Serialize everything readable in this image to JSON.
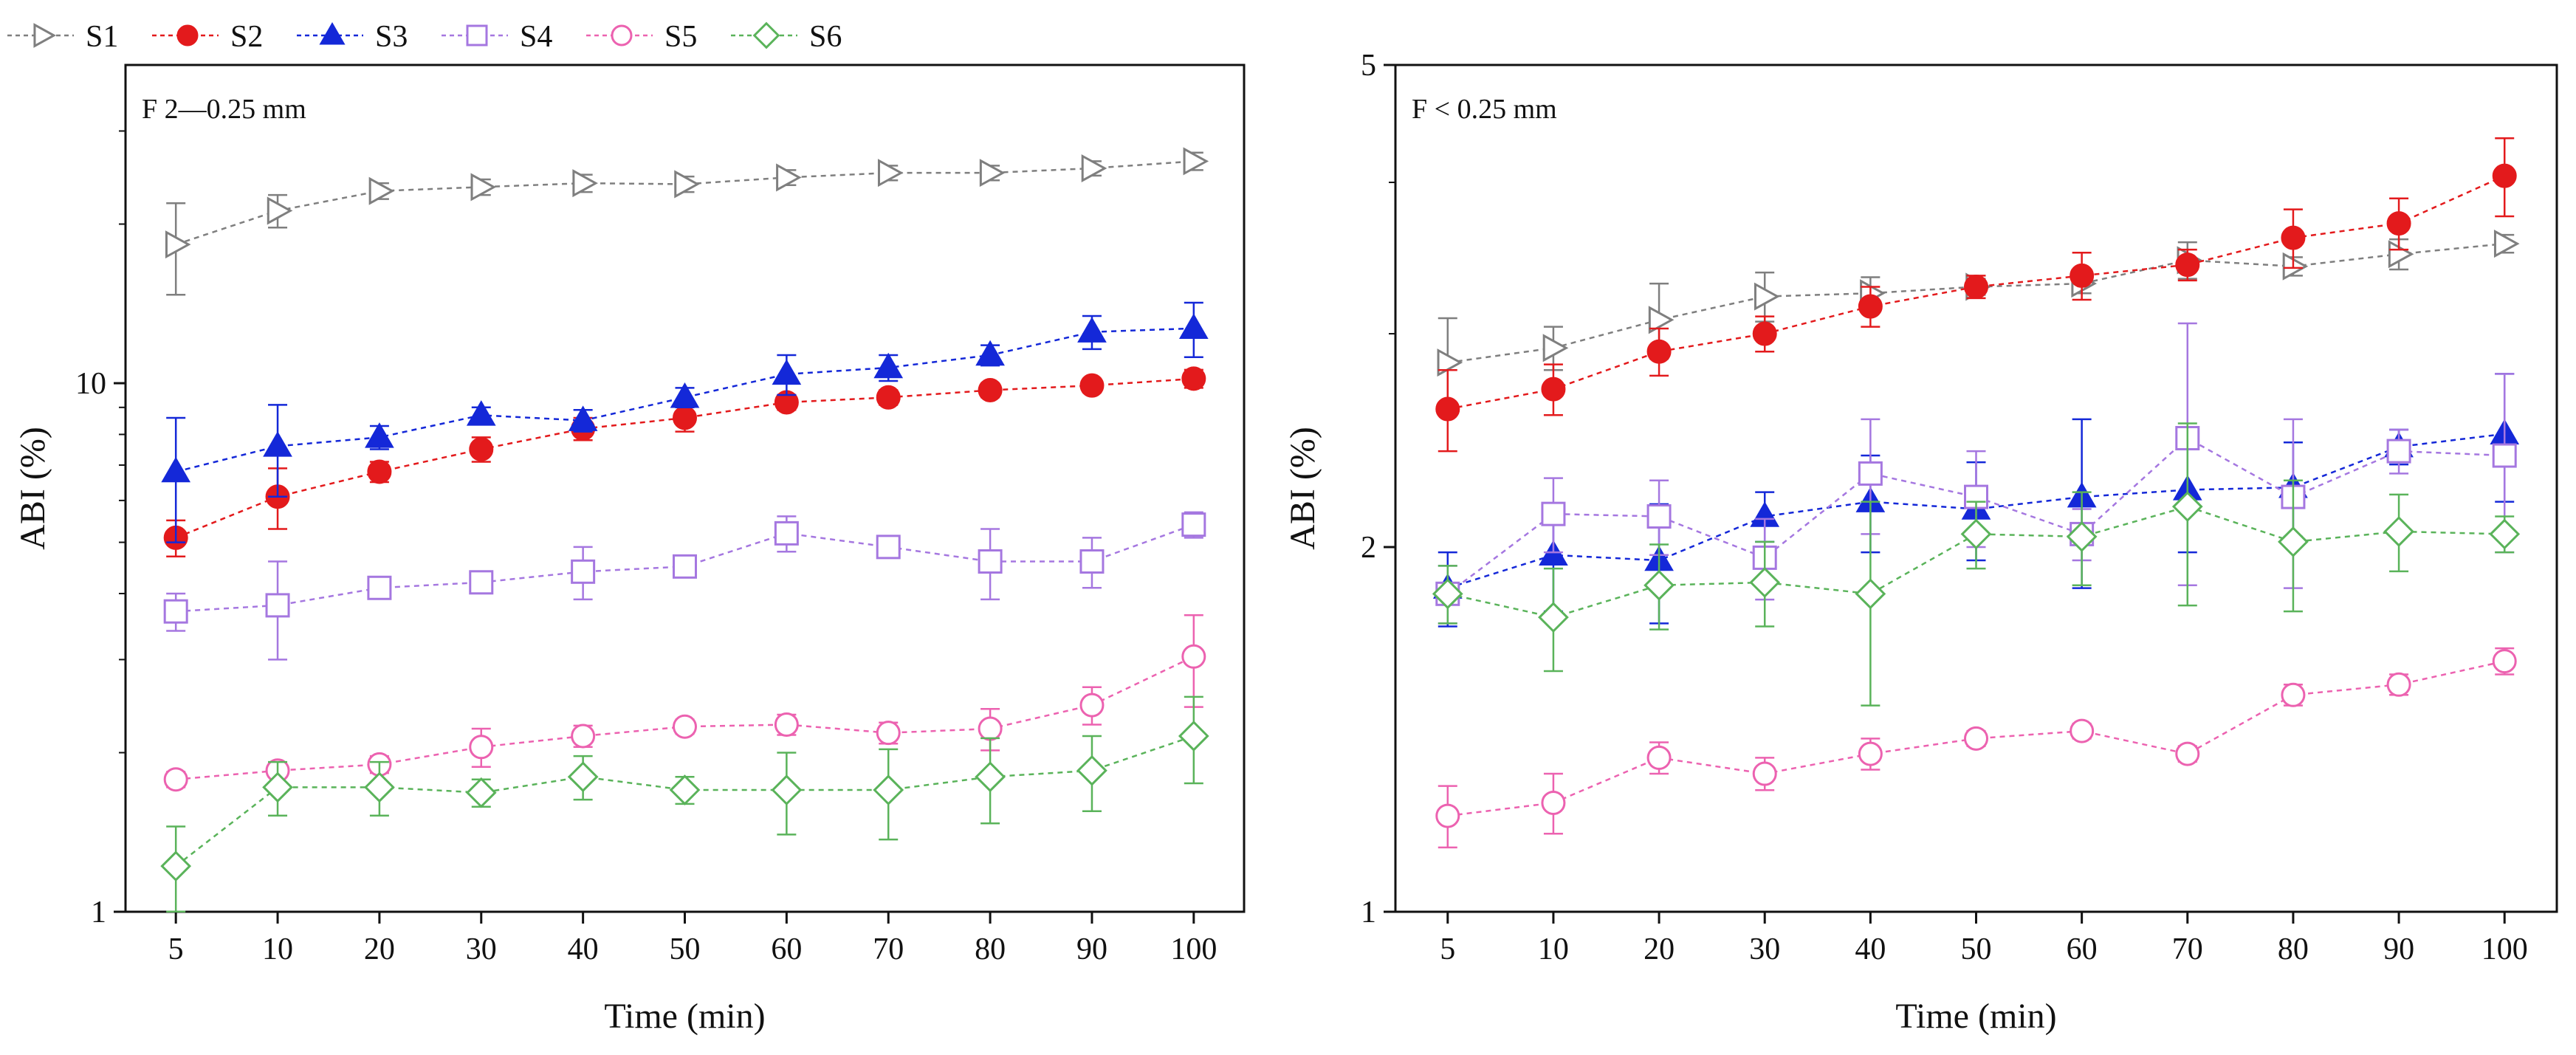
{
  "chart_data": {
    "type": "line",
    "legend": {
      "placement": "top-left, above panels",
      "entries": [
        "S1",
        "S2",
        "S3",
        "S4",
        "S5",
        "S6"
      ]
    },
    "series_style": [
      {
        "name": "S1",
        "color": "#7f7f7f",
        "marker": "triangle-right",
        "filled": false
      },
      {
        "name": "S2",
        "color": "#e31a1c",
        "marker": "circle",
        "filled": true
      },
      {
        "name": "S3",
        "color": "#1428d8",
        "marker": "triangle-up",
        "filled": true
      },
      {
        "name": "S4",
        "color": "#a577e0",
        "marker": "square",
        "filled": false
      },
      {
        "name": "S5",
        "color": "#ec62b0",
        "marker": "circle",
        "filled": false
      },
      {
        "name": "S6",
        "color": "#5ab35a",
        "marker": "diamond",
        "filled": false
      }
    ],
    "panels": [
      {
        "id": "left",
        "annotation": "F 2—0.25 mm",
        "xlabel": "Time (min)",
        "ylabel": "ABI (%)",
        "yscale": "log",
        "ylim": [
          1,
          40
        ],
        "yticks": [
          1,
          10
        ],
        "ytick_labels": [
          "1",
          "10"
        ],
        "categories": [
          "5",
          "10",
          "20",
          "30",
          "40",
          "50",
          "60",
          "70",
          "80",
          "90",
          "100"
        ],
        "series": [
          {
            "name": "S1",
            "values": [
              18.3,
              21.2,
              23.1,
              23.5,
              23.9,
              23.8,
              24.5,
              25.0,
              25.0,
              25.5,
              26.3
            ],
            "errors": [
              3.6,
              1.5,
              0.8,
              0.8,
              0.9,
              0.8,
              0.8,
              0.8,
              0.8,
              0.8,
              1.0
            ]
          },
          {
            "name": "S2",
            "values": [
              5.1,
              6.1,
              6.8,
              7.5,
              8.2,
              8.6,
              9.2,
              9.4,
              9.7,
              9.9,
              10.2
            ],
            "errors": [
              0.4,
              0.8,
              0.3,
              0.4,
              0.4,
              0.5,
              0.3,
              0.3,
              0.3,
              0.3,
              0.4
            ]
          },
          {
            "name": "S3",
            "values": [
              6.8,
              7.6,
              7.9,
              8.7,
              8.5,
              9.4,
              10.4,
              10.7,
              11.3,
              12.5,
              12.7
            ],
            "errors": [
              1.8,
              1.5,
              0.4,
              0.3,
              0.4,
              0.4,
              0.9,
              0.6,
              0.5,
              0.9,
              1.5
            ]
          },
          {
            "name": "S4",
            "values": [
              3.7,
              3.8,
              4.1,
              4.2,
              4.4,
              4.5,
              5.2,
              4.9,
              4.6,
              4.6,
              5.4
            ],
            "errors": [
              0.3,
              0.8,
              0.15,
              0.15,
              0.5,
              0.2,
              0.4,
              0.2,
              0.7,
              0.5,
              0.3
            ]
          },
          {
            "name": "S5",
            "values": [
              1.78,
              1.85,
              1.9,
              2.05,
              2.15,
              2.24,
              2.26,
              2.18,
              2.22,
              2.46,
              3.04
            ],
            "errors": [
              0.06,
              0.05,
              0.07,
              0.17,
              0.1,
              0.07,
              0.1,
              0.1,
              0.2,
              0.2,
              0.6
            ]
          },
          {
            "name": "S6",
            "values": [
              1.22,
              1.72,
              1.72,
              1.68,
              1.8,
              1.7,
              1.7,
              1.7,
              1.8,
              1.85,
              2.15
            ],
            "errors": [
              0.23,
              0.2,
              0.2,
              0.1,
              0.17,
              0.1,
              0.3,
              0.33,
              0.33,
              0.3,
              0.4
            ]
          }
        ]
      },
      {
        "id": "right",
        "annotation": "F < 0.25 mm",
        "xlabel": "Time (min)",
        "ylabel": "ABI (%)",
        "yscale": "log",
        "ylim": [
          1,
          5
        ],
        "yticks": [
          1,
          2,
          5
        ],
        "ytick_labels": [
          "1",
          "2",
          "5"
        ],
        "categories": [
          "5",
          "10",
          "20",
          "30",
          "40",
          "50",
          "60",
          "70",
          "80",
          "90",
          "100"
        ],
        "series": [
          {
            "name": "S1",
            "values": [
              2.84,
              2.92,
              3.08,
              3.22,
              3.24,
              3.28,
              3.3,
              3.45,
              3.41,
              3.49,
              3.56
            ],
            "errors": [
              0.25,
              0.12,
              0.22,
              0.15,
              0.1,
              0.05,
              0.06,
              0.12,
              0.06,
              0.1,
              0.06
            ]
          },
          {
            "name": "S2",
            "values": [
              2.6,
              2.7,
              2.9,
              3.0,
              3.16,
              3.28,
              3.35,
              3.42,
              3.6,
              3.7,
              4.05
            ],
            "errors": [
              0.2,
              0.13,
              0.13,
              0.1,
              0.12,
              0.07,
              0.15,
              0.1,
              0.2,
              0.18,
              0.3
            ]
          },
          {
            "name": "S3",
            "values": [
              1.85,
              1.97,
              1.95,
              2.12,
              2.18,
              2.15,
              2.2,
              2.23,
              2.24,
              2.42,
              2.48
            ],
            "errors": [
              0.13,
              0.2,
              0.22,
              0.1,
              0.2,
              0.2,
              0.35,
              0.25,
              0.2,
              0.08,
              0.3
            ]
          },
          {
            "name": "S4",
            "values": [
              1.83,
              2.13,
              2.12,
              1.96,
              2.3,
              2.2,
              2.05,
              2.46,
              2.2,
              2.4,
              2.38
            ],
            "errors": [
              0.1,
              0.15,
              0.15,
              0.15,
              0.25,
              0.2,
              0.1,
              0.6,
              0.35,
              0.1,
              0.4
            ]
          },
          {
            "name": "S5",
            "values": [
              1.2,
              1.23,
              1.34,
              1.3,
              1.35,
              1.39,
              1.41,
              1.35,
              1.51,
              1.54,
              1.61
            ],
            "errors": [
              0.07,
              0.07,
              0.04,
              0.04,
              0.04,
              0.02,
              0.02,
              0.02,
              0.03,
              0.03,
              0.04
            ]
          },
          {
            "name": "S6",
            "values": [
              1.83,
              1.75,
              1.86,
              1.87,
              1.83,
              2.05,
              2.04,
              2.16,
              2.02,
              2.06,
              2.05
            ],
            "errors": [
              0.1,
              0.17,
              0.15,
              0.15,
              0.35,
              0.13,
              0.18,
              0.37,
              0.25,
              0.15,
              0.07
            ]
          }
        ]
      }
    ]
  }
}
